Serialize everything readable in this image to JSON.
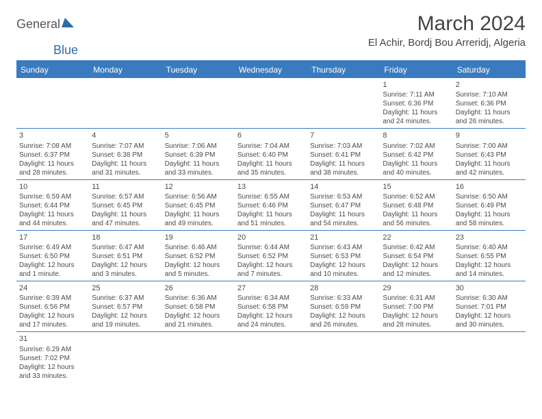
{
  "logo": {
    "part1": "General",
    "part2": "Blue"
  },
  "title": "March 2024",
  "location": "El Achir, Bordj Bou Arreridj, Algeria",
  "colors": {
    "header_bg": "#3a7bbf",
    "header_text": "#ffffff",
    "border": "#3a7bbf",
    "text": "#4a4a4a",
    "logo_blue": "#2d6ca8"
  },
  "day_names": [
    "Sunday",
    "Monday",
    "Tuesday",
    "Wednesday",
    "Thursday",
    "Friday",
    "Saturday"
  ],
  "weeks": [
    [
      null,
      null,
      null,
      null,
      null,
      {
        "n": "1",
        "sr": "Sunrise: 7:11 AM",
        "ss": "Sunset: 6:36 PM",
        "dl1": "Daylight: 11 hours",
        "dl2": "and 24 minutes."
      },
      {
        "n": "2",
        "sr": "Sunrise: 7:10 AM",
        "ss": "Sunset: 6:36 PM",
        "dl1": "Daylight: 11 hours",
        "dl2": "and 26 minutes."
      }
    ],
    [
      {
        "n": "3",
        "sr": "Sunrise: 7:08 AM",
        "ss": "Sunset: 6:37 PM",
        "dl1": "Daylight: 11 hours",
        "dl2": "and 28 minutes."
      },
      {
        "n": "4",
        "sr": "Sunrise: 7:07 AM",
        "ss": "Sunset: 6:38 PM",
        "dl1": "Daylight: 11 hours",
        "dl2": "and 31 minutes."
      },
      {
        "n": "5",
        "sr": "Sunrise: 7:06 AM",
        "ss": "Sunset: 6:39 PM",
        "dl1": "Daylight: 11 hours",
        "dl2": "and 33 minutes."
      },
      {
        "n": "6",
        "sr": "Sunrise: 7:04 AM",
        "ss": "Sunset: 6:40 PM",
        "dl1": "Daylight: 11 hours",
        "dl2": "and 35 minutes."
      },
      {
        "n": "7",
        "sr": "Sunrise: 7:03 AM",
        "ss": "Sunset: 6:41 PM",
        "dl1": "Daylight: 11 hours",
        "dl2": "and 38 minutes."
      },
      {
        "n": "8",
        "sr": "Sunrise: 7:02 AM",
        "ss": "Sunset: 6:42 PM",
        "dl1": "Daylight: 11 hours",
        "dl2": "and 40 minutes."
      },
      {
        "n": "9",
        "sr": "Sunrise: 7:00 AM",
        "ss": "Sunset: 6:43 PM",
        "dl1": "Daylight: 11 hours",
        "dl2": "and 42 minutes."
      }
    ],
    [
      {
        "n": "10",
        "sr": "Sunrise: 6:59 AM",
        "ss": "Sunset: 6:44 PM",
        "dl1": "Daylight: 11 hours",
        "dl2": "and 44 minutes."
      },
      {
        "n": "11",
        "sr": "Sunrise: 6:57 AM",
        "ss": "Sunset: 6:45 PM",
        "dl1": "Daylight: 11 hours",
        "dl2": "and 47 minutes."
      },
      {
        "n": "12",
        "sr": "Sunrise: 6:56 AM",
        "ss": "Sunset: 6:45 PM",
        "dl1": "Daylight: 11 hours",
        "dl2": "and 49 minutes."
      },
      {
        "n": "13",
        "sr": "Sunrise: 6:55 AM",
        "ss": "Sunset: 6:46 PM",
        "dl1": "Daylight: 11 hours",
        "dl2": "and 51 minutes."
      },
      {
        "n": "14",
        "sr": "Sunrise: 6:53 AM",
        "ss": "Sunset: 6:47 PM",
        "dl1": "Daylight: 11 hours",
        "dl2": "and 54 minutes."
      },
      {
        "n": "15",
        "sr": "Sunrise: 6:52 AM",
        "ss": "Sunset: 6:48 PM",
        "dl1": "Daylight: 11 hours",
        "dl2": "and 56 minutes."
      },
      {
        "n": "16",
        "sr": "Sunrise: 6:50 AM",
        "ss": "Sunset: 6:49 PM",
        "dl1": "Daylight: 11 hours",
        "dl2": "and 58 minutes."
      }
    ],
    [
      {
        "n": "17",
        "sr": "Sunrise: 6:49 AM",
        "ss": "Sunset: 6:50 PM",
        "dl1": "Daylight: 12 hours",
        "dl2": "and 1 minute."
      },
      {
        "n": "18",
        "sr": "Sunrise: 6:47 AM",
        "ss": "Sunset: 6:51 PM",
        "dl1": "Daylight: 12 hours",
        "dl2": "and 3 minutes."
      },
      {
        "n": "19",
        "sr": "Sunrise: 6:46 AM",
        "ss": "Sunset: 6:52 PM",
        "dl1": "Daylight: 12 hours",
        "dl2": "and 5 minutes."
      },
      {
        "n": "20",
        "sr": "Sunrise: 6:44 AM",
        "ss": "Sunset: 6:52 PM",
        "dl1": "Daylight: 12 hours",
        "dl2": "and 7 minutes."
      },
      {
        "n": "21",
        "sr": "Sunrise: 6:43 AM",
        "ss": "Sunset: 6:53 PM",
        "dl1": "Daylight: 12 hours",
        "dl2": "and 10 minutes."
      },
      {
        "n": "22",
        "sr": "Sunrise: 6:42 AM",
        "ss": "Sunset: 6:54 PM",
        "dl1": "Daylight: 12 hours",
        "dl2": "and 12 minutes."
      },
      {
        "n": "23",
        "sr": "Sunrise: 6:40 AM",
        "ss": "Sunset: 6:55 PM",
        "dl1": "Daylight: 12 hours",
        "dl2": "and 14 minutes."
      }
    ],
    [
      {
        "n": "24",
        "sr": "Sunrise: 6:39 AM",
        "ss": "Sunset: 6:56 PM",
        "dl1": "Daylight: 12 hours",
        "dl2": "and 17 minutes."
      },
      {
        "n": "25",
        "sr": "Sunrise: 6:37 AM",
        "ss": "Sunset: 6:57 PM",
        "dl1": "Daylight: 12 hours",
        "dl2": "and 19 minutes."
      },
      {
        "n": "26",
        "sr": "Sunrise: 6:36 AM",
        "ss": "Sunset: 6:58 PM",
        "dl1": "Daylight: 12 hours",
        "dl2": "and 21 minutes."
      },
      {
        "n": "27",
        "sr": "Sunrise: 6:34 AM",
        "ss": "Sunset: 6:58 PM",
        "dl1": "Daylight: 12 hours",
        "dl2": "and 24 minutes."
      },
      {
        "n": "28",
        "sr": "Sunrise: 6:33 AM",
        "ss": "Sunset: 6:59 PM",
        "dl1": "Daylight: 12 hours",
        "dl2": "and 26 minutes."
      },
      {
        "n": "29",
        "sr": "Sunrise: 6:31 AM",
        "ss": "Sunset: 7:00 PM",
        "dl1": "Daylight: 12 hours",
        "dl2": "and 28 minutes."
      },
      {
        "n": "30",
        "sr": "Sunrise: 6:30 AM",
        "ss": "Sunset: 7:01 PM",
        "dl1": "Daylight: 12 hours",
        "dl2": "and 30 minutes."
      }
    ],
    [
      {
        "n": "31",
        "sr": "Sunrise: 6:29 AM",
        "ss": "Sunset: 7:02 PM",
        "dl1": "Daylight: 12 hours",
        "dl2": "and 33 minutes."
      },
      null,
      null,
      null,
      null,
      null,
      null
    ]
  ]
}
